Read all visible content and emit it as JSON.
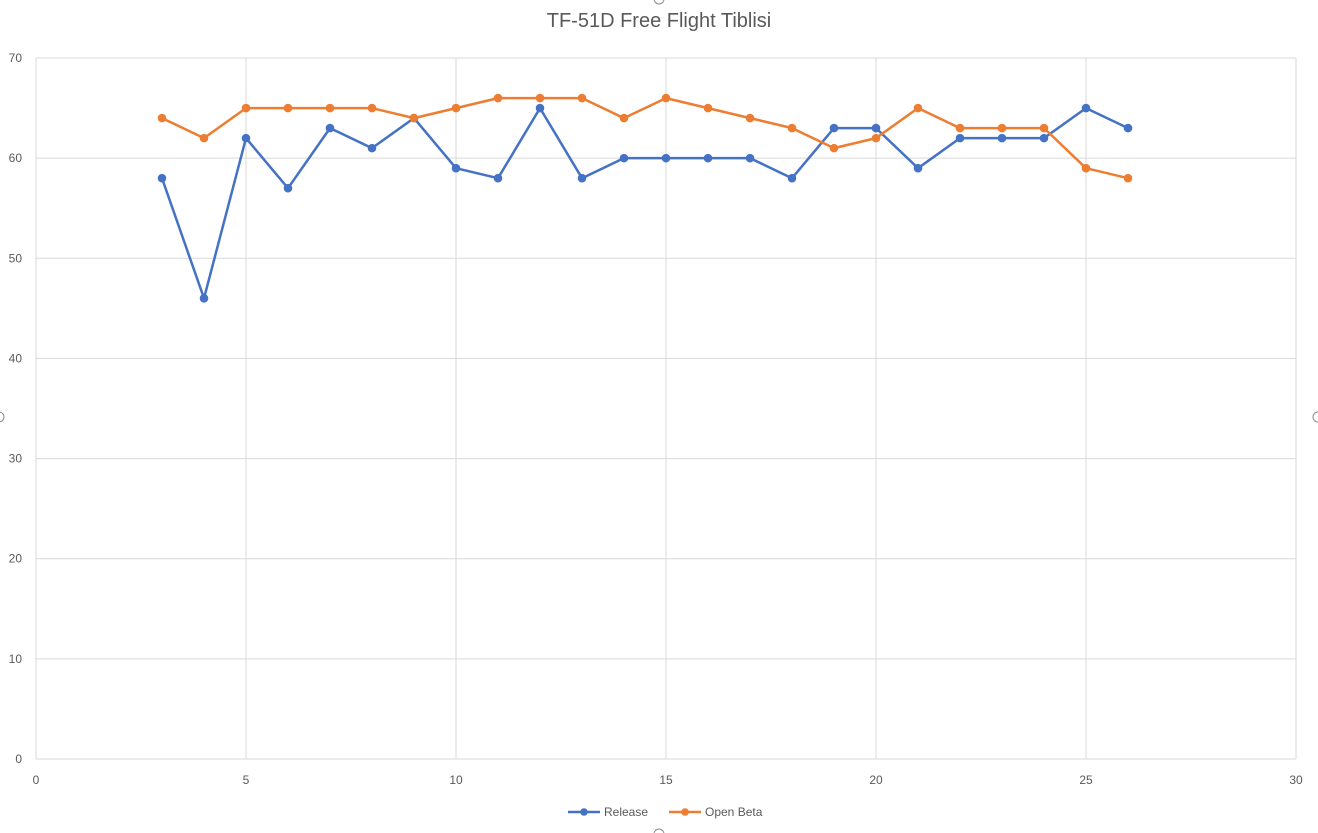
{
  "chart_data": {
    "type": "scatter",
    "mode": "lines+markers",
    "title": "TF-51D Free Flight Tiblisi",
    "xlabel": "",
    "ylabel": "",
    "xlim": [
      0,
      30
    ],
    "ylim": [
      0,
      70
    ],
    "xticks": [
      0,
      5,
      10,
      15,
      20,
      25,
      30
    ],
    "yticks": [
      0,
      10,
      20,
      30,
      40,
      50,
      60,
      70
    ],
    "grid": true,
    "legend_position": "bottom",
    "series": [
      {
        "name": "Release",
        "color": "#4472C4",
        "x": [
          3,
          4,
          5,
          6,
          7,
          8,
          9,
          10,
          11,
          12,
          13,
          14,
          15,
          16,
          17,
          18,
          19,
          20,
          21,
          22,
          23,
          24,
          25,
          26
        ],
        "y": [
          58,
          46,
          62,
          57,
          63,
          61,
          64,
          59,
          58,
          65,
          58,
          60,
          60,
          60,
          60,
          58,
          63,
          63,
          59,
          62,
          62,
          62,
          65,
          63
        ]
      },
      {
        "name": "Open Beta",
        "color": "#ED7D31",
        "x": [
          3,
          4,
          5,
          6,
          7,
          8,
          9,
          10,
          11,
          12,
          13,
          14,
          15,
          16,
          17,
          18,
          19,
          20,
          21,
          22,
          23,
          24,
          25,
          26
        ],
        "y": [
          64,
          62,
          65,
          65,
          65,
          65,
          64,
          65,
          66,
          66,
          66,
          64,
          66,
          65,
          64,
          63,
          61,
          62,
          65,
          63,
          63,
          63,
          59,
          58
        ]
      }
    ]
  }
}
